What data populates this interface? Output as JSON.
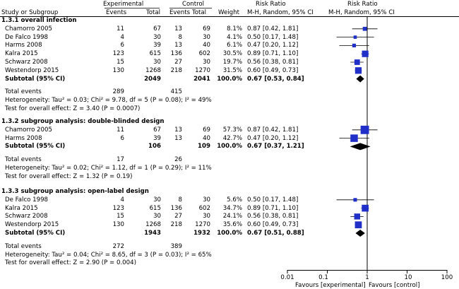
{
  "header": {
    "experimental": "Experimental",
    "control": "Control",
    "risk_ratio": "Risk Ratio",
    "risk_ratio_plot": "Risk Ratio",
    "study_col": "Study or Subgroup",
    "events": "Events",
    "total": "Total",
    "events2": "Events",
    "total2": "Total",
    "weight": "Weight",
    "method": "M-H, Random, 95% CI",
    "method_plot": "M-H, Random, 95% CI"
  },
  "subtotal_label": "Subtotal (95% CI)",
  "total_events_label": "Total events",
  "groups": [
    {
      "title": "1.3.1 overall infection",
      "studies": [
        {
          "name": "Chamorro 2005",
          "e1": "11",
          "n1": "67",
          "e2": "13",
          "n2": "69",
          "w": "8.1%",
          "rr": "0.87 [0.42, 1.81]"
        },
        {
          "name": "De Falco 1998",
          "e1": "4",
          "n1": "30",
          "e2": "8",
          "n2": "30",
          "w": "4.1%",
          "rr": "0.50 [0.17, 1.48]"
        },
        {
          "name": "Harms 2008",
          "e1": "6",
          "n1": "39",
          "e2": "13",
          "n2": "40",
          "w": "6.1%",
          "rr": "0.47 [0.20, 1.12]"
        },
        {
          "name": "Kalra 2015",
          "e1": "123",
          "n1": "615",
          "e2": "136",
          "n2": "602",
          "w": "30.5%",
          "rr": "0.89 [0.71, 1.10]"
        },
        {
          "name": "Schwarz 2008",
          "e1": "15",
          "n1": "30",
          "e2": "27",
          "n2": "30",
          "w": "19.7%",
          "rr": "0.56 [0.38, 0.81]"
        },
        {
          "name": "Westendorp 2015",
          "e1": "130",
          "n1": "1268",
          "e2": "218",
          "n2": "1270",
          "w": "31.5%",
          "rr": "0.60 [0.49, 0.73]"
        }
      ],
      "subtotal": {
        "n1": "2049",
        "n2": "2041",
        "w": "100.0%",
        "rr": "0.67 [0.53, 0.84]"
      },
      "total_events": {
        "e1": "289",
        "e2": "415"
      },
      "heterogeneity": "Heterogeneity: Tau² = 0.03; Chi² = 9.78, df = 5 (P = 0.08); I² = 49%",
      "overall": "Test for overall effect: Z = 3.40 (P = 0.0007)"
    },
    {
      "title": "1.3.2 subgroup analysis: double-blinded design",
      "studies": [
        {
          "name": "Chamorro 2005",
          "e1": "11",
          "n1": "67",
          "e2": "13",
          "n2": "69",
          "w": "57.3%",
          "rr": "0.87 [0.42, 1.81]"
        },
        {
          "name": "Harms 2008",
          "e1": "6",
          "n1": "39",
          "e2": "13",
          "n2": "40",
          "w": "42.7%",
          "rr": "0.47 [0.20, 1.12]"
        }
      ],
      "subtotal": {
        "n1": "106",
        "n2": "109",
        "w": "100.0%",
        "rr": "0.67 [0.37, 1.21]"
      },
      "total_events": {
        "e1": "17",
        "e2": "26"
      },
      "heterogeneity": "Heterogeneity: Tau² = 0.02; Chi² = 1.12, df = 1 (P = 0.29); I² = 11%",
      "overall": "Test for overall effect: Z = 1.32 (P = 0.19)"
    },
    {
      "title": "1.3.3 subgroup analysis: open-label design",
      "studies": [
        {
          "name": "De Falco 1998",
          "e1": "4",
          "n1": "30",
          "e2": "8",
          "n2": "30",
          "w": "5.6%",
          "rr": "0.50 [0.17, 1.48]"
        },
        {
          "name": "Kalra 2015",
          "e1": "123",
          "n1": "615",
          "e2": "136",
          "n2": "602",
          "w": "34.7%",
          "rr": "0.89 [0.71, 1.10]"
        },
        {
          "name": "Schwarz 2008",
          "e1": "15",
          "n1": "30",
          "e2": "27",
          "n2": "30",
          "w": "24.1%",
          "rr": "0.56 [0.38, 0.81]"
        },
        {
          "name": "Westendorp 2015",
          "e1": "130",
          "n1": "1268",
          "e2": "218",
          "n2": "1270",
          "w": "35.6%",
          "rr": "0.60 [0.49, 0.73]"
        }
      ],
      "subtotal": {
        "n1": "1943",
        "n2": "1932",
        "w": "100.0%",
        "rr": "0.67 [0.51, 0.88]"
      },
      "total_events": {
        "e1": "272",
        "e2": "389"
      },
      "heterogeneity": "Heterogeneity: Tau² = 0.04; Chi² = 8.65, df = 3 (P = 0.03); I² = 65%",
      "overall": "Test for overall effect: Z = 2.90 (P = 0.004)"
    }
  ],
  "axis": {
    "ticks": [
      "0.01",
      "0.1",
      "1",
      "10",
      "100"
    ],
    "favours_left": "Favours [experimental]",
    "favours_right": "Favours [control]"
  },
  "colors": {
    "marker": "#1f2fc8",
    "line": "#000000",
    "text": "#000000"
  },
  "chart_data": {
    "type": "forest",
    "scale": "log",
    "xlim": [
      0.01,
      100
    ],
    "xticks": [
      0.01,
      0.1,
      1,
      10,
      100
    ],
    "null_line": 1,
    "groups": [
      {
        "title": "1.3.1 overall infection",
        "studies": [
          {
            "study": "Chamorro 2005",
            "rr": 0.87,
            "lo": 0.42,
            "hi": 1.81,
            "weight": 8.1
          },
          {
            "study": "De Falco 1998",
            "rr": 0.5,
            "lo": 0.17,
            "hi": 1.48,
            "weight": 4.1
          },
          {
            "study": "Harms 2008",
            "rr": 0.47,
            "lo": 0.2,
            "hi": 1.12,
            "weight": 6.1
          },
          {
            "study": "Kalra 2015",
            "rr": 0.89,
            "lo": 0.71,
            "hi": 1.1,
            "weight": 30.5
          },
          {
            "study": "Schwarz 2008",
            "rr": 0.56,
            "lo": 0.38,
            "hi": 0.81,
            "weight": 19.7
          },
          {
            "study": "Westendorp 2015",
            "rr": 0.6,
            "lo": 0.49,
            "hi": 0.73,
            "weight": 31.5
          }
        ],
        "pooled": {
          "rr": 0.67,
          "lo": 0.53,
          "hi": 0.84
        }
      },
      {
        "title": "1.3.2 subgroup analysis: double-blinded design",
        "studies": [
          {
            "study": "Chamorro 2005",
            "rr": 0.87,
            "lo": 0.42,
            "hi": 1.81,
            "weight": 57.3
          },
          {
            "study": "Harms 2008",
            "rr": 0.47,
            "lo": 0.2,
            "hi": 1.12,
            "weight": 42.7
          }
        ],
        "pooled": {
          "rr": 0.67,
          "lo": 0.37,
          "hi": 1.21
        }
      },
      {
        "title": "1.3.3 subgroup analysis: open-label design",
        "studies": [
          {
            "study": "De Falco 1998",
            "rr": 0.5,
            "lo": 0.17,
            "hi": 1.48,
            "weight": 5.6
          },
          {
            "study": "Kalra 2015",
            "rr": 0.89,
            "lo": 0.71,
            "hi": 1.1,
            "weight": 34.7
          },
          {
            "study": "Schwarz 2008",
            "rr": 0.56,
            "lo": 0.38,
            "hi": 0.81,
            "weight": 24.1
          },
          {
            "study": "Westendorp 2015",
            "rr": 0.6,
            "lo": 0.49,
            "hi": 0.73,
            "weight": 35.6
          }
        ],
        "pooled": {
          "rr": 0.67,
          "lo": 0.51,
          "hi": 0.88
        }
      }
    ]
  }
}
